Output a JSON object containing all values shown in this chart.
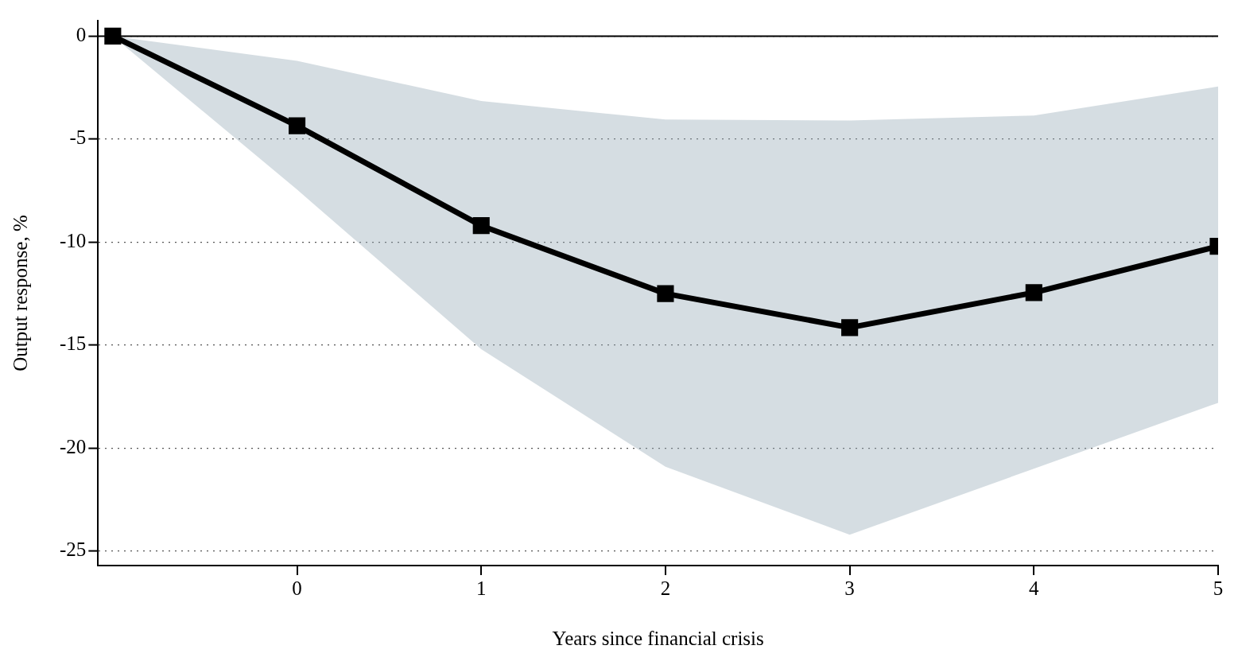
{
  "chart_data": {
    "type": "line",
    "xlabel": "Years since financial crisis",
    "ylabel": "Output response, %",
    "x": [
      -1,
      0,
      1,
      2,
      3,
      4,
      5
    ],
    "series": [
      {
        "color": "#000000",
        "values": [
          0,
          -4.35,
          -9.2,
          -12.5,
          -14.15,
          -12.45,
          -10.2
        ],
        "lower": [
          0,
          -7.45,
          -15.2,
          -20.9,
          -24.2,
          -21,
          -17.8
        ],
        "upper": [
          0,
          -1.2,
          -3.15,
          -4.05,
          -4.1,
          -3.85,
          -2.45
        ]
      }
    ],
    "xlim": [
      -1.08,
      5
    ],
    "xticks": [
      0,
      1,
      2,
      3,
      4,
      5
    ],
    "ylim": [
      -25.7,
      0.75
    ],
    "yticks": [
      -25,
      -20,
      -15,
      -10,
      -5,
      0
    ],
    "ref_lines": [
      {
        "axis": "y",
        "value": 0,
        "color": "#000000",
        "line_style": "solid"
      }
    ],
    "grid": "y",
    "legend": false,
    "marker": "square",
    "line_style": "solid"
  }
}
